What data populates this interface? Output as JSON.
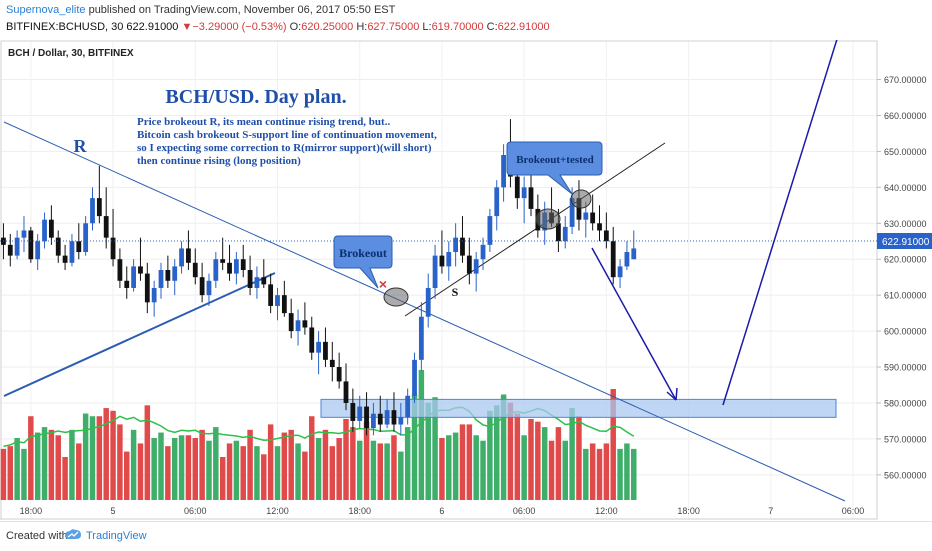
{
  "header": {
    "author": "Supernova_elite",
    "published_text": " published on TradingView.com, November 06, 2017 05:50 EST",
    "symbol": "BITFINEX:BCHUSD, 30",
    "last": "622.91000",
    "change_marker": "▼",
    "change": "−3.29000 (−0.53%)",
    "o_label": "O:",
    "o": "620.25000",
    "h_label": "H:",
    "h": "627.75000",
    "l_label": "L:",
    "l": "619.70000",
    "c_label": "C:",
    "c": "622.91000"
  },
  "chart_title": "BCH / Dollar, 30, BITFINEX",
  "annotations": {
    "plan_title": "BCH/USD. Day plan.",
    "plan_lines": [
      "Price brokeout R, its mean continue rising trend, but..",
      "Bitcoin cash brokeout S-support line of continuation movement,",
      "so I expecting some correction to R(mirror support)(will short)",
      "then continue rising (long position)"
    ],
    "r_label": "R",
    "s_label": "S",
    "breakout_label": "Brokeout",
    "breakout_tested_label": "Brokeout+tested",
    "x_mark": "×"
  },
  "colors": {
    "up": "#2962c8",
    "down": "#111111",
    "vol_up": "#3fae6a",
    "vol_down": "#e04a4a",
    "vol_ma": "#2fbf4a",
    "trendline": "#2a5db0",
    "zone_fill": "#a9c8f0",
    "callout_fill": "#5b8ee0",
    "note_text": "#1f4fa8",
    "price_tag": "#2962c8"
  },
  "footer": {
    "created_with": "Created with",
    "brand": "TradingView",
    "logo_icon": "tradingview-logo-icon"
  },
  "chart_data": {
    "type": "candlestick",
    "title": "BCH / Dollar, 30, BITFINEX",
    "y_axis_ticks": [
      "670.00000",
      "660.00000",
      "650.00000",
      "640.00000",
      "630.00000",
      "620.00000",
      "610.00000",
      "600.00000",
      "590.00000",
      "580.00000",
      "570.00000",
      "560.00000"
    ],
    "y_range": [
      553,
      681
    ],
    "last_price": "622.91000",
    "x_axis_ticks": [
      {
        "bar": -5,
        "label": "18:00"
      },
      {
        "bar": 7,
        "label": "5"
      },
      {
        "bar": 19,
        "label": "06:00"
      },
      {
        "bar": 31,
        "label": "12:00"
      },
      {
        "bar": 43,
        "label": "18:00"
      },
      {
        "bar": 55,
        "label": "6"
      },
      {
        "bar": 67,
        "label": "06:00"
      },
      {
        "bar": 79,
        "label": "12:00"
      },
      {
        "bar": 91,
        "label": "18:00"
      },
      {
        "bar": 103,
        "label": "7"
      },
      {
        "bar": 115,
        "label": "06:00"
      }
    ],
    "bar_count_visible": 128,
    "first_bar_index": -9,
    "candles": [
      {
        "o": 626,
        "h": 630,
        "l": 620,
        "c": 624
      },
      {
        "o": 624,
        "h": 627,
        "l": 618,
        "c": 621
      },
      {
        "o": 621,
        "h": 628,
        "l": 620,
        "c": 626
      },
      {
        "o": 626,
        "h": 632,
        "l": 622,
        "c": 628
      },
      {
        "o": 628,
        "h": 629,
        "l": 619,
        "c": 620
      },
      {
        "o": 620,
        "h": 627,
        "l": 617,
        "c": 625
      },
      {
        "o": 625,
        "h": 633,
        "l": 623,
        "c": 631
      },
      {
        "o": 631,
        "h": 635,
        "l": 624,
        "c": 626
      },
      {
        "o": 626,
        "h": 628,
        "l": 619,
        "c": 621
      },
      {
        "o": 621,
        "h": 624,
        "l": 617,
        "c": 619
      },
      {
        "o": 619,
        "h": 627,
        "l": 618,
        "c": 625
      },
      {
        "o": 625,
        "h": 630,
        "l": 620,
        "c": 622
      },
      {
        "o": 622,
        "h": 632,
        "l": 621,
        "c": 630
      },
      {
        "o": 630,
        "h": 640,
        "l": 628,
        "c": 637
      },
      {
        "o": 637,
        "h": 646,
        "l": 630,
        "c": 632
      },
      {
        "o": 632,
        "h": 640,
        "l": 623,
        "c": 626
      },
      {
        "o": 626,
        "h": 634,
        "l": 618,
        "c": 620
      },
      {
        "o": 620,
        "h": 623,
        "l": 612,
        "c": 614
      },
      {
        "o": 614,
        "h": 618,
        "l": 609,
        "c": 612
      },
      {
        "o": 612,
        "h": 620,
        "l": 611,
        "c": 618
      },
      {
        "o": 618,
        "h": 626,
        "l": 614,
        "c": 616
      },
      {
        "o": 616,
        "h": 619,
        "l": 605,
        "c": 608
      },
      {
        "o": 608,
        "h": 614,
        "l": 604,
        "c": 612
      },
      {
        "o": 612,
        "h": 619,
        "l": 609,
        "c": 617
      },
      {
        "o": 617,
        "h": 621,
        "l": 612,
        "c": 614
      },
      {
        "o": 614,
        "h": 620,
        "l": 610,
        "c": 618
      },
      {
        "o": 618,
        "h": 625,
        "l": 616,
        "c": 623
      },
      {
        "o": 623,
        "h": 628,
        "l": 617,
        "c": 619
      },
      {
        "o": 619,
        "h": 623,
        "l": 613,
        "c": 615
      },
      {
        "o": 615,
        "h": 619,
        "l": 608,
        "c": 610
      },
      {
        "o": 610,
        "h": 616,
        "l": 607,
        "c": 614
      },
      {
        "o": 614,
        "h": 622,
        "l": 612,
        "c": 620
      },
      {
        "o": 620,
        "h": 626,
        "l": 617,
        "c": 619
      },
      {
        "o": 619,
        "h": 624,
        "l": 614,
        "c": 616
      },
      {
        "o": 616,
        "h": 622,
        "l": 613,
        "c": 620
      },
      {
        "o": 620,
        "h": 624,
        "l": 615,
        "c": 617
      },
      {
        "o": 617,
        "h": 621,
        "l": 610,
        "c": 612
      },
      {
        "o": 612,
        "h": 618,
        "l": 609,
        "c": 615
      },
      {
        "o": 615,
        "h": 620,
        "l": 612,
        "c": 613
      },
      {
        "o": 613,
        "h": 616,
        "l": 605,
        "c": 607
      },
      {
        "o": 607,
        "h": 612,
        "l": 603,
        "c": 610
      },
      {
        "o": 610,
        "h": 614,
        "l": 604,
        "c": 605
      },
      {
        "o": 605,
        "h": 609,
        "l": 598,
        "c": 600
      },
      {
        "o": 600,
        "h": 606,
        "l": 596,
        "c": 603
      },
      {
        "o": 603,
        "h": 608,
        "l": 599,
        "c": 601
      },
      {
        "o": 601,
        "h": 604,
        "l": 592,
        "c": 594
      },
      {
        "o": 594,
        "h": 600,
        "l": 588,
        "c": 597
      },
      {
        "o": 597,
        "h": 601,
        "l": 590,
        "c": 592
      },
      {
        "o": 592,
        "h": 597,
        "l": 586,
        "c": 590
      },
      {
        "o": 590,
        "h": 594,
        "l": 584,
        "c": 586
      },
      {
        "o": 586,
        "h": 591,
        "l": 578,
        "c": 580
      },
      {
        "o": 580,
        "h": 584,
        "l": 572,
        "c": 575
      },
      {
        "o": 575,
        "h": 582,
        "l": 573,
        "c": 579
      },
      {
        "o": 579,
        "h": 583,
        "l": 571,
        "c": 573
      },
      {
        "o": 573,
        "h": 580,
        "l": 571,
        "c": 577
      },
      {
        "o": 577,
        "h": 582,
        "l": 572,
        "c": 574
      },
      {
        "o": 574,
        "h": 581,
        "l": 573,
        "c": 578
      },
      {
        "o": 578,
        "h": 583,
        "l": 572,
        "c": 574
      },
      {
        "o": 574,
        "h": 580,
        "l": 571,
        "c": 576
      },
      {
        "o": 576,
        "h": 584,
        "l": 574,
        "c": 582
      },
      {
        "o": 582,
        "h": 594,
        "l": 580,
        "c": 592
      },
      {
        "o": 592,
        "h": 608,
        "l": 589,
        "c": 604
      },
      {
        "o": 604,
        "h": 616,
        "l": 601,
        "c": 612
      },
      {
        "o": 612,
        "h": 624,
        "l": 609,
        "c": 621
      },
      {
        "o": 621,
        "h": 628,
        "l": 616,
        "c": 618
      },
      {
        "o": 618,
        "h": 625,
        "l": 614,
        "c": 622
      },
      {
        "o": 622,
        "h": 630,
        "l": 618,
        "c": 626
      },
      {
        "o": 626,
        "h": 632,
        "l": 619,
        "c": 621
      },
      {
        "o": 621,
        "h": 626,
        "l": 613,
        "c": 616
      },
      {
        "o": 616,
        "h": 622,
        "l": 611,
        "c": 620
      },
      {
        "o": 620,
        "h": 626,
        "l": 617,
        "c": 624
      },
      {
        "o": 624,
        "h": 634,
        "l": 622,
        "c": 632
      },
      {
        "o": 632,
        "h": 642,
        "l": 628,
        "c": 640
      },
      {
        "o": 640,
        "h": 652,
        "l": 636,
        "c": 649
      },
      {
        "o": 649,
        "h": 659,
        "l": 640,
        "c": 643
      },
      {
        "o": 643,
        "h": 649,
        "l": 634,
        "c": 637
      },
      {
        "o": 637,
        "h": 643,
        "l": 630,
        "c": 640
      },
      {
        "o": 640,
        "h": 645,
        "l": 632,
        "c": 634
      },
      {
        "o": 634,
        "h": 638,
        "l": 626,
        "c": 628
      },
      {
        "o": 628,
        "h": 636,
        "l": 624,
        "c": 633
      },
      {
        "o": 633,
        "h": 640,
        "l": 629,
        "c": 630
      },
      {
        "o": 630,
        "h": 634,
        "l": 622,
        "c": 625
      },
      {
        "o": 625,
        "h": 632,
        "l": 623,
        "c": 629
      },
      {
        "o": 629,
        "h": 640,
        "l": 627,
        "c": 637
      },
      {
        "o": 637,
        "h": 642,
        "l": 628,
        "c": 631
      },
      {
        "o": 631,
        "h": 636,
        "l": 626,
        "c": 633
      },
      {
        "o": 633,
        "h": 638,
        "l": 628,
        "c": 630
      },
      {
        "o": 630,
        "h": 635,
        "l": 625,
        "c": 628
      },
      {
        "o": 628,
        "h": 633,
        "l": 623,
        "c": 625
      },
      {
        "o": 625,
        "h": 629,
        "l": 613,
        "c": 615
      },
      {
        "o": 615,
        "h": 620,
        "l": 612,
        "c": 618
      },
      {
        "o": 618,
        "h": 625,
        "l": 617,
        "c": 622
      },
      {
        "o": 620,
        "h": 628,
        "l": 620,
        "c": 623
      }
    ],
    "volume_ma": "moving average of volume (green line)",
    "drawings": {
      "r_line": "downtrend resistance line from upper-left, extended to lower-right",
      "support_line": "rising support line on the left",
      "s_line": "rising S-support line under the breakout",
      "target_zone_range": [
        576,
        581
      ],
      "projection": "down to zone ~580, then up beyond 670"
    }
  }
}
